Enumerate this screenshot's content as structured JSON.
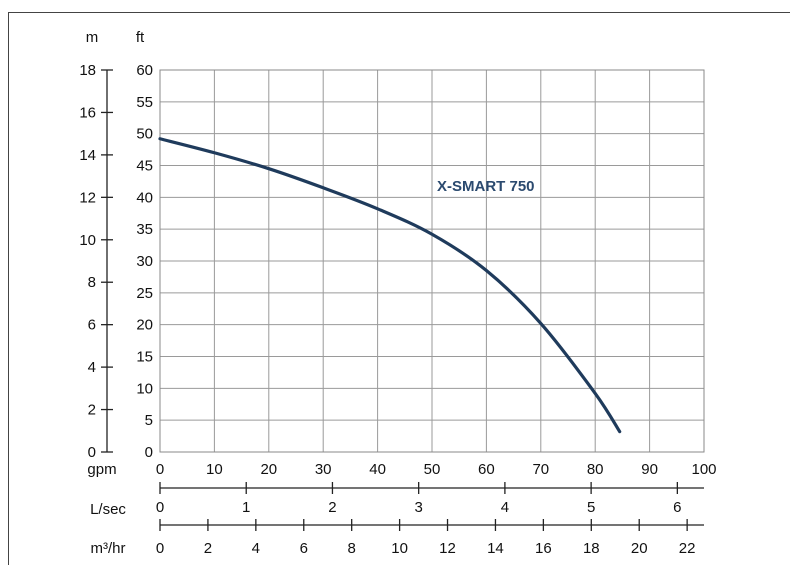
{
  "chart_data": {
    "type": "line",
    "title": "",
    "xlabel": "gpm",
    "ylabel": "ft",
    "x_range": [
      0,
      100
    ],
    "y_range": [
      0,
      60
    ],
    "grid": true,
    "x_ticks": [
      "0",
      "10",
      "20",
      "30",
      "40",
      "50",
      "60",
      "70",
      "80",
      "90",
      "100"
    ],
    "y_ticks": [
      "0",
      "5",
      "10",
      "15",
      "20",
      "25",
      "30",
      "35",
      "40",
      "45",
      "50",
      "55",
      "60"
    ],
    "metric_head_axis": {
      "label": "m",
      "range": [
        0,
        18
      ],
      "ticks": [
        "0",
        "2",
        "4",
        "6",
        "8",
        "10",
        "12",
        "14",
        "16",
        "18"
      ]
    },
    "flow_axes": [
      {
        "label": "L/sec",
        "range": [
          0,
          6
        ],
        "ticks": [
          "0",
          "1",
          "2",
          "3",
          "4",
          "5",
          "6"
        ]
      },
      {
        "label": "m³/hr",
        "range": [
          0,
          22
        ],
        "ticks": [
          "0",
          "2",
          "4",
          "6",
          "8",
          "10",
          "12",
          "14",
          "16",
          "18",
          "20",
          "22"
        ]
      }
    ],
    "series": [
      {
        "name": "X-SMART 750",
        "color": "#1f3b5c",
        "x": [
          0,
          10,
          20,
          30,
          40,
          50,
          60,
          70,
          80,
          84.5
        ],
        "y": [
          49.2,
          47.0,
          44.5,
          41.5,
          38.2,
          34.2,
          28.5,
          20.2,
          9.2,
          3.2
        ]
      }
    ]
  }
}
